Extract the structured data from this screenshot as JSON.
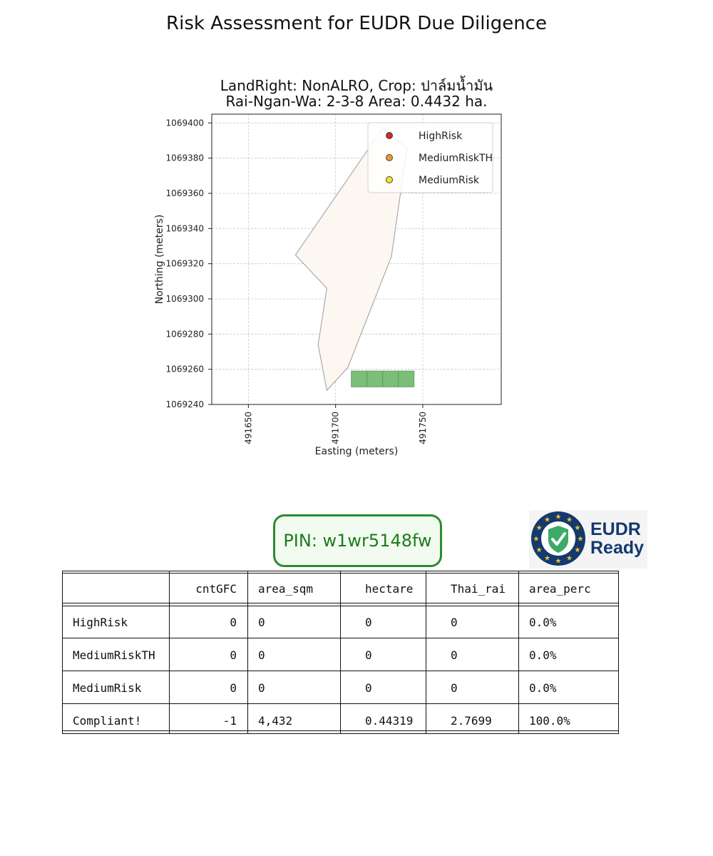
{
  "page_title": "Risk Assessment for EUDR Due Diligence",
  "chart_data": {
    "type": "map",
    "title_line1": "LandRight: NonALRO,  Crop: ปาล์มน้ำมัน",
    "title_line2": "Rai-Ngan-Wa: 2-3-8    Area: 0.4432 ha.",
    "xlabel": "Easting (meters)",
    "ylabel": "Northing (meters)",
    "xlim": [
      491629,
      491795
    ],
    "ylim": [
      1069240,
      1069405
    ],
    "xticks": [
      491650,
      491700,
      491750
    ],
    "yticks": [
      1069240,
      1069260,
      1069280,
      1069300,
      1069320,
      1069340,
      1069360,
      1069380,
      1069400
    ],
    "grid": true,
    "parcel_polygon": [
      [
        491727,
        1069397
      ],
      [
        491741,
        1069386
      ],
      [
        491732,
        1069324
      ],
      [
        491707,
        1069261
      ],
      [
        491695,
        1069248
      ],
      [
        491690,
        1069274
      ],
      [
        491695,
        1069306
      ],
      [
        491677,
        1069325
      ],
      [
        491727,
        1069397
      ]
    ],
    "parcel_color": "#fdf7f2",
    "parcel_edge_color": "#aaaaaa",
    "green_cells": [
      {
        "x0": 491709,
        "x1": 491718,
        "y0": 1069250,
        "y1": 1069259
      },
      {
        "x0": 491718,
        "x1": 491727,
        "y0": 1069250,
        "y1": 1069259
      },
      {
        "x0": 491727,
        "x1": 491736,
        "y0": 1069250,
        "y1": 1069259
      },
      {
        "x0": 491736,
        "x1": 491745,
        "y0": 1069250,
        "y1": 1069259
      }
    ],
    "green_cell_color": "#6cb86c",
    "legend_position": "upper-right",
    "legend": [
      {
        "label": "HighRisk",
        "color": "#d62728"
      },
      {
        "label": "MediumRiskTH",
        "color": "#e69b2a"
      },
      {
        "label": "MediumRisk",
        "color": "#f2e51c"
      }
    ]
  },
  "pin_label": "PIN: w1wr5148fw",
  "logo": {
    "line1": "EUDR",
    "line2": "Ready",
    "icon": "eu-stars-shield-check-icon",
    "ring_color": "#14396e",
    "star_color": "#f2c230",
    "check_color": "#3daa68"
  },
  "table": {
    "headers": [
      "",
      "cntGFC",
      "area_sqm",
      "hectare",
      "Thai_rai",
      "area_perc"
    ],
    "rows": [
      [
        "HighRisk",
        "0",
        "0",
        "0",
        "0",
        "0.0%"
      ],
      [
        "MediumRiskTH",
        "0",
        "0",
        "0",
        "0",
        "0.0%"
      ],
      [
        "MediumRisk",
        "0",
        "0",
        "0",
        "0",
        "0.0%"
      ],
      [
        "Compliant!",
        "-1",
        "4,432",
        "0.44319",
        "2.7699",
        "100.0%"
      ]
    ]
  }
}
